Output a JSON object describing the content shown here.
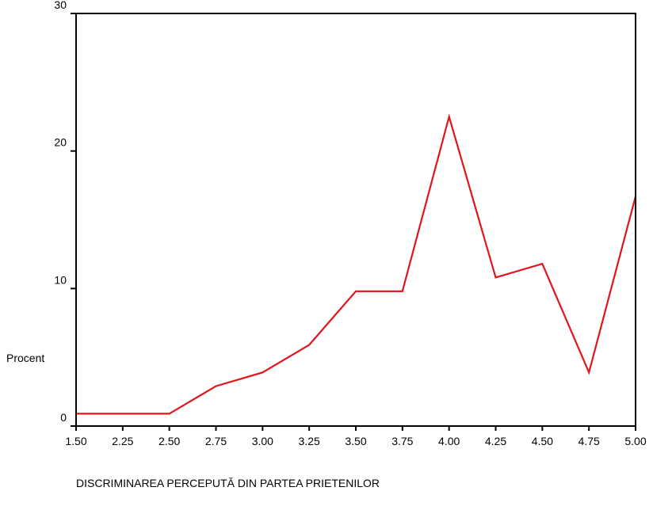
{
  "chart_data": {
    "type": "line",
    "ylabel": "Procent",
    "xlabel": "DISCRIMINAREA PERCEPUTĂ DIN PARTEA PRIETENILOR",
    "x_ticks": [
      "1.50",
      "2.25",
      "2.50",
      "2.75",
      "3.00",
      "3.25",
      "3.50",
      "3.75",
      "4.00",
      "4.25",
      "4.50",
      "4.75",
      "5.00"
    ],
    "y_ticks": [
      0,
      10,
      20,
      30
    ],
    "ylim": [
      0,
      30
    ],
    "grid": false,
    "series": [
      {
        "color": "#e0151b",
        "values": [
          0.9,
          0.9,
          0.9,
          2.9,
          3.9,
          5.9,
          9.8,
          9.8,
          22.5,
          10.8,
          11.8,
          3.9,
          16.7
        ]
      }
    ]
  }
}
